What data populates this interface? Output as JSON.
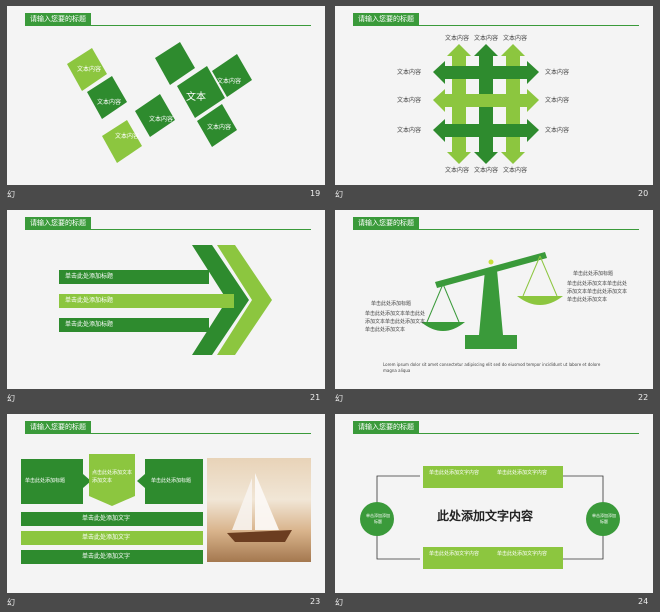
{
  "slides": [
    {
      "num": "19",
      "title": "请输入您要的标题",
      "center": "文本",
      "items": [
        "文本内容",
        "文本内容",
        "文本内容",
        "文本内容",
        "文本内容",
        "文本内容"
      ]
    },
    {
      "num": "20",
      "title": "请输入您要的标题",
      "items": [
        "文本内容",
        "文本内容",
        "文本内容",
        "文本内容",
        "文本内容",
        "文本内容",
        "文本内容",
        "文本内容",
        "文本内容",
        "文本内容",
        "文本内容",
        "文本内容"
      ]
    },
    {
      "num": "21",
      "title": "请输入您要的标题",
      "rows": [
        "单击此处添加标题",
        "单击此处添加标题",
        "单击此处添加标题"
      ]
    },
    {
      "num": "22",
      "title": "请输入您要的标题",
      "left_head": "单击此处添加标题",
      "left_body": "单击此处添加文本单击此处添加文本单击此处添加文本单击此处添加文本",
      "right_head": "单击此处添加标题",
      "right_body": "单击此处添加文本单击此处添加文本单击此处添加文本单击此处添加文本",
      "footer": "Lorem ipsum dolor sit amet consectetur adipiscing elit sed do eiusmod tempor incididunt ut labore et dolore magna aliqua"
    },
    {
      "num": "23",
      "title": "请输入您要的标题",
      "top": [
        "单击此处添加标题",
        "点击此处添加文本添加文本",
        "单击此处添加标题"
      ],
      "bars": [
        "单击此处添加文字",
        "单击此处添加文字",
        "单击此处添加文字"
      ]
    },
    {
      "num": "24",
      "title": "请输入您要的标题",
      "center": "此处添加文字内容",
      "side_left": "单击添加添加标题",
      "side_right": "单击添加添加标题",
      "boxes": [
        "单击此处添加文字内容",
        "单击此处添加文字内容",
        "单击此处添加文字内容",
        "单击此处添加文字内容"
      ]
    }
  ],
  "captions": [
    "幻",
    "幻",
    "幻",
    "幻",
    "幻",
    "幻"
  ]
}
